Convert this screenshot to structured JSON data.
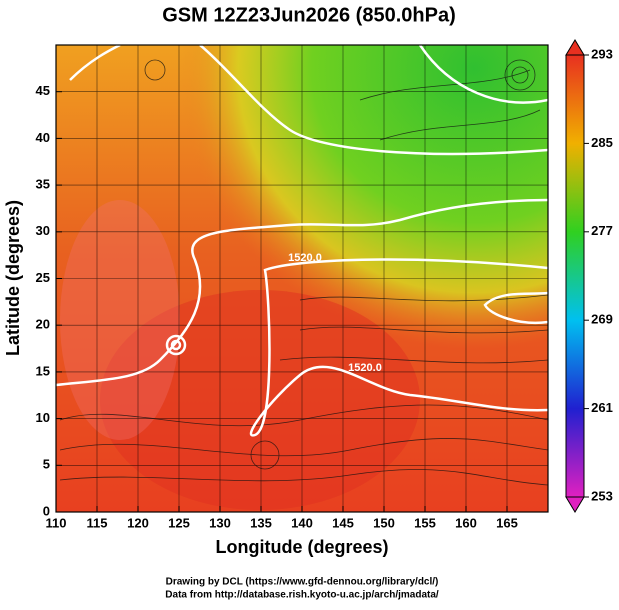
{
  "title": "GSM 12Z23Jun2026 (850.0hPa)",
  "x_label": "Longitude (degrees)",
  "y_label": "Latitude  (degrees)",
  "xlim": [
    110,
    170
  ],
  "xticks": [
    110,
    115,
    120,
    125,
    130,
    135,
    140,
    145,
    150,
    155,
    160,
    165
  ],
  "ylim": [
    0,
    50
  ],
  "yticks": [
    0,
    5,
    10,
    15,
    20,
    25,
    30,
    35,
    40,
    45
  ],
  "colorbar": {
    "lim": [
      253,
      293
    ],
    "ticks": [
      253,
      261,
      269,
      277,
      285,
      293
    ]
  },
  "contour_labels": [
    "1520.0",
    "1520.0"
  ],
  "footer": [
    "Drawing by DCL (https://www.gfd-dennou.org/library/dcl/)",
    "Data from http://database.rish.kyoto-u.ac.jp/arch/jmadata/"
  ]
}
